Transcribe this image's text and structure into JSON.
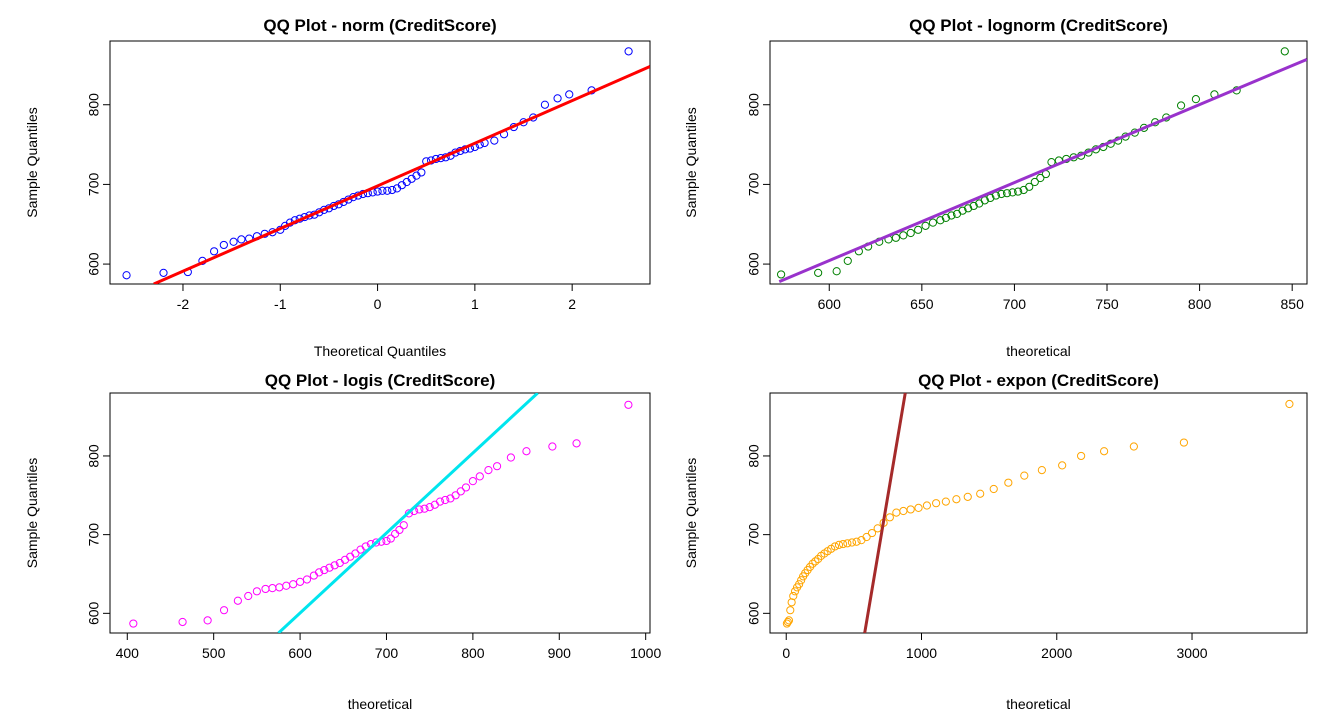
{
  "chart_data": [
    {
      "type": "scatter",
      "title": "QQ Plot - norm (CreditScore)",
      "xlabel": "Theoretical Quantiles",
      "ylabel": "Sample Quantiles",
      "xlim": [
        -2.75,
        2.8
      ],
      "ylim": [
        575,
        880
      ],
      "xticks": [
        -2,
        -1,
        0,
        1,
        2
      ],
      "yticks": [
        600,
        700,
        800
      ],
      "point_color": "#0000ff",
      "line_color": "#ff0000",
      "reference_line": [
        [
          -2.3,
          575
        ],
        [
          2.8,
          848
        ]
      ],
      "grid": false,
      "points": [
        [
          -2.58,
          586
        ],
        [
          -2.2,
          589
        ],
        [
          -1.95,
          590
        ],
        [
          -1.8,
          604
        ],
        [
          -1.68,
          616
        ],
        [
          -1.58,
          624
        ],
        [
          -1.48,
          628
        ],
        [
          -1.4,
          631
        ],
        [
          -1.32,
          632
        ],
        [
          -1.24,
          635
        ],
        [
          -1.16,
          638
        ],
        [
          -1.08,
          640
        ],
        [
          -1.0,
          643
        ],
        [
          -0.95,
          648
        ],
        [
          -0.9,
          652
        ],
        [
          -0.85,
          655
        ],
        [
          -0.8,
          657
        ],
        [
          -0.75,
          659
        ],
        [
          -0.7,
          661
        ],
        [
          -0.65,
          662
        ],
        [
          -0.6,
          665
        ],
        [
          -0.55,
          668
        ],
        [
          -0.5,
          670
        ],
        [
          -0.45,
          673
        ],
        [
          -0.4,
          675
        ],
        [
          -0.35,
          678
        ],
        [
          -0.3,
          681
        ],
        [
          -0.25,
          684
        ],
        [
          -0.2,
          686
        ],
        [
          -0.15,
          688
        ],
        [
          -0.1,
          689
        ],
        [
          -0.05,
          690
        ],
        [
          0.0,
          691
        ],
        [
          0.05,
          692
        ],
        [
          0.1,
          692
        ],
        [
          0.15,
          693
        ],
        [
          0.2,
          695
        ],
        [
          0.25,
          699
        ],
        [
          0.3,
          703
        ],
        [
          0.35,
          707
        ],
        [
          0.4,
          711
        ],
        [
          0.45,
          715
        ],
        [
          0.5,
          729
        ],
        [
          0.55,
          730
        ],
        [
          0.6,
          732
        ],
        [
          0.65,
          733
        ],
        [
          0.7,
          734
        ],
        [
          0.75,
          736
        ],
        [
          0.8,
          740
        ],
        [
          0.85,
          742
        ],
        [
          0.9,
          744
        ],
        [
          0.95,
          745
        ],
        [
          1.0,
          747
        ],
        [
          1.05,
          750
        ],
        [
          1.1,
          752
        ],
        [
          1.2,
          755
        ],
        [
          1.3,
          763
        ],
        [
          1.4,
          772
        ],
        [
          1.5,
          778
        ],
        [
          1.6,
          784
        ],
        [
          1.72,
          800
        ],
        [
          1.85,
          808
        ],
        [
          1.97,
          813
        ],
        [
          2.2,
          818
        ],
        [
          2.58,
          867
        ]
      ]
    },
    {
      "type": "scatter",
      "title": "QQ Plot - lognorm (CreditScore)",
      "xlabel": "theoretical",
      "ylabel": "Sample Quantiles",
      "xlim": [
        568,
        858
      ],
      "ylim": [
        575,
        880
      ],
      "xticks": [
        600,
        650,
        700,
        750,
        800,
        850
      ],
      "yticks": [
        600,
        700,
        800
      ],
      "point_color": "#008000",
      "line_color": "#9932cc",
      "reference_line": [
        [
          573,
          578
        ],
        [
          858,
          857
        ]
      ],
      "grid": false,
      "points": [
        [
          574,
          587
        ],
        [
          594,
          589
        ],
        [
          604,
          591
        ],
        [
          610,
          604
        ],
        [
          616,
          616
        ],
        [
          621,
          622
        ],
        [
          627,
          628
        ],
        [
          632,
          631
        ],
        [
          636,
          633
        ],
        [
          640,
          636
        ],
        [
          644,
          639
        ],
        [
          648,
          643
        ],
        [
          652,
          648
        ],
        [
          656,
          652
        ],
        [
          660,
          655
        ],
        [
          663,
          658
        ],
        [
          666,
          661
        ],
        [
          669,
          663
        ],
        [
          672,
          667
        ],
        [
          675,
          670
        ],
        [
          678,
          673
        ],
        [
          681,
          676
        ],
        [
          684,
          680
        ],
        [
          687,
          683
        ],
        [
          690,
          686
        ],
        [
          693,
          688
        ],
        [
          696,
          689
        ],
        [
          699,
          690
        ],
        [
          702,
          691
        ],
        [
          705,
          693
        ],
        [
          708,
          697
        ],
        [
          711,
          703
        ],
        [
          714,
          708
        ],
        [
          717,
          713
        ],
        [
          720,
          728
        ],
        [
          724,
          730
        ],
        [
          728,
          732
        ],
        [
          732,
          734
        ],
        [
          736,
          736
        ],
        [
          740,
          740
        ],
        [
          744,
          744
        ],
        [
          748,
          747
        ],
        [
          752,
          751
        ],
        [
          756,
          755
        ],
        [
          760,
          760
        ],
        [
          765,
          765
        ],
        [
          770,
          771
        ],
        [
          776,
          778
        ],
        [
          782,
          784
        ],
        [
          790,
          799
        ],
        [
          798,
          807
        ],
        [
          808,
          813
        ],
        [
          820,
          818
        ],
        [
          846,
          867
        ]
      ]
    },
    {
      "type": "scatter",
      "title": "QQ Plot - logis (CreditScore)",
      "xlabel": "theoretical",
      "ylabel": "Sample Quantiles",
      "xlim": [
        380,
        1005
      ],
      "ylim": [
        575,
        880
      ],
      "xticks": [
        400,
        500,
        600,
        700,
        800,
        900,
        1000
      ],
      "yticks": [
        600,
        700,
        800
      ],
      "point_color": "#ff00ff",
      "line_color": "#00e5ee",
      "reference_line": [
        [
          575,
          575
        ],
        [
          875,
          880
        ]
      ],
      "grid": false,
      "points": [
        [
          407,
          587
        ],
        [
          464,
          589
        ],
        [
          493,
          591
        ],
        [
          512,
          604
        ],
        [
          528,
          616
        ],
        [
          540,
          622
        ],
        [
          550,
          628
        ],
        [
          560,
          631
        ],
        [
          568,
          632
        ],
        [
          576,
          633
        ],
        [
          584,
          635
        ],
        [
          592,
          637
        ],
        [
          600,
          640
        ],
        [
          608,
          643
        ],
        [
          616,
          648
        ],
        [
          622,
          652
        ],
        [
          628,
          655
        ],
        [
          634,
          658
        ],
        [
          640,
          661
        ],
        [
          646,
          664
        ],
        [
          652,
          668
        ],
        [
          658,
          672
        ],
        [
          664,
          676
        ],
        [
          670,
          681
        ],
        [
          676,
          685
        ],
        [
          682,
          688
        ],
        [
          688,
          690
        ],
        [
          694,
          691
        ],
        [
          700,
          692
        ],
        [
          705,
          695
        ],
        [
          710,
          701
        ],
        [
          715,
          706
        ],
        [
          720,
          712
        ],
        [
          726,
          727
        ],
        [
          732,
          730
        ],
        [
          738,
          732
        ],
        [
          744,
          733
        ],
        [
          750,
          735
        ],
        [
          756,
          738
        ],
        [
          762,
          742
        ],
        [
          768,
          744
        ],
        [
          774,
          746
        ],
        [
          780,
          750
        ],
        [
          786,
          755
        ],
        [
          792,
          760
        ],
        [
          800,
          768
        ],
        [
          808,
          774
        ],
        [
          818,
          782
        ],
        [
          828,
          787
        ],
        [
          844,
          798
        ],
        [
          862,
          806
        ],
        [
          892,
          812
        ],
        [
          920,
          816
        ],
        [
          980,
          865
        ]
      ]
    },
    {
      "type": "scatter",
      "title": "QQ Plot - expon (CreditScore)",
      "xlabel": "theoretical",
      "ylabel": "Sample Quantiles",
      "xlim": [
        -120,
        3850
      ],
      "ylim": [
        575,
        880
      ],
      "xticks": [
        0,
        1000,
        2000,
        3000
      ],
      "yticks": [
        600,
        700,
        800
      ],
      "point_color": "#ffa500",
      "line_color": "#a52a2a",
      "reference_line": [
        [
          580,
          575
        ],
        [
          880,
          880
        ]
      ],
      "grid": false,
      "points": [
        [
          5,
          587
        ],
        [
          12,
          589
        ],
        [
          20,
          591
        ],
        [
          30,
          604
        ],
        [
          40,
          614
        ],
        [
          52,
          622
        ],
        [
          65,
          628
        ],
        [
          80,
          633
        ],
        [
          95,
          637
        ],
        [
          110,
          642
        ],
        [
          125,
          647
        ],
        [
          140,
          651
        ],
        [
          158,
          655
        ],
        [
          176,
          659
        ],
        [
          195,
          663
        ],
        [
          215,
          666
        ],
        [
          236,
          669
        ],
        [
          258,
          673
        ],
        [
          282,
          676
        ],
        [
          306,
          679
        ],
        [
          332,
          682
        ],
        [
          360,
          685
        ],
        [
          390,
          687
        ],
        [
          420,
          688
        ],
        [
          452,
          689
        ],
        [
          486,
          690
        ],
        [
          520,
          691
        ],
        [
          556,
          693
        ],
        [
          594,
          697
        ],
        [
          634,
          702
        ],
        [
          676,
          708
        ],
        [
          720,
          715
        ],
        [
          766,
          722
        ],
        [
          814,
          728
        ],
        [
          866,
          730
        ],
        [
          920,
          732
        ],
        [
          978,
          734
        ],
        [
          1040,
          737
        ],
        [
          1108,
          740
        ],
        [
          1180,
          742
        ],
        [
          1258,
          745
        ],
        [
          1342,
          748
        ],
        [
          1434,
          752
        ],
        [
          1534,
          758
        ],
        [
          1642,
          766
        ],
        [
          1760,
          775
        ],
        [
          1890,
          782
        ],
        [
          2040,
          788
        ],
        [
          2180,
          800
        ],
        [
          2350,
          806
        ],
        [
          2570,
          812
        ],
        [
          2940,
          817
        ],
        [
          3720,
          866
        ]
      ]
    }
  ]
}
